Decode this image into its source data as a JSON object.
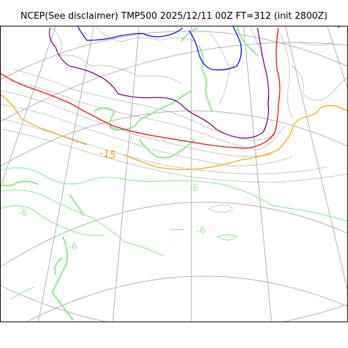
{
  "title": "NCEP(See disclaimer) TMP500 2025/12/11 00Z FT=312 (init 2800Z)",
  "map": {
    "projection": "polar-stereographic",
    "field": "TMP500",
    "contour_labels": [
      {
        "text": "-15",
        "color": "#ffa500"
      },
      {
        "text": "-6",
        "color": "#90ee90"
      },
      {
        "text": "-6",
        "color": "#90ee90"
      },
      {
        "text": "-6",
        "color": "#90ee90"
      },
      {
        "text": "-6",
        "color": "#90ee90"
      }
    ],
    "colors": {
      "graticule": "#b0b0b0",
      "coastline": "#404040",
      "isotherm_minus6": "#90ee90",
      "isotherm_minus15": "#ffa500",
      "isotherm_minus21": "#ff0000",
      "isotherm_minus27": "#800080",
      "isotherm_minus33": "#0000ff",
      "frame": "#000000"
    }
  }
}
